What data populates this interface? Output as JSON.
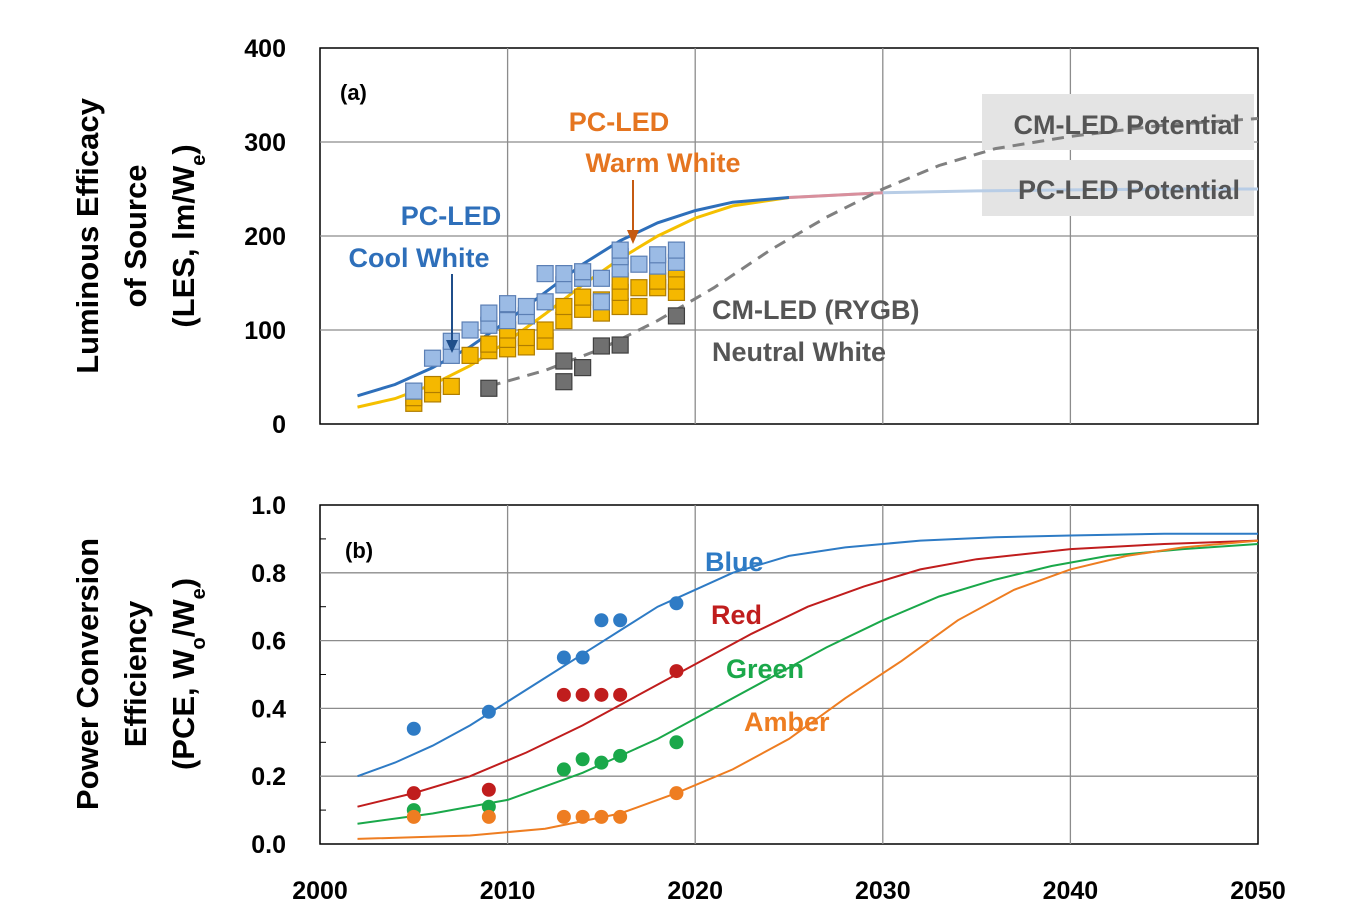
{
  "chart_data": [
    {
      "panel": "(a)",
      "type": "scatter",
      "ylabel_lines": [
        "Luminous Efficacy",
        "of Source",
        "(LES, lm/W",
        "e",
        ")"
      ],
      "xlim": [
        2000,
        2050
      ],
      "ylim": [
        0,
        400
      ],
      "yticks": [
        "0",
        "100",
        "200",
        "300",
        "400"
      ],
      "grid": true,
      "annotations": {
        "cool_white_1": "PC-LED",
        "cool_white_2": "Cool White",
        "warm_white_1": "PC-LED",
        "warm_white_2": "Warm White",
        "cm_led_1": "CM-LED (RYGB)",
        "cm_led_2": "Neutral White",
        "cm_potential": "CM-LED Potential",
        "pc_potential": "PC-LED Potential"
      },
      "colors": {
        "cool": "#2e6fba",
        "warm": "#f5c000",
        "cm": "#808080",
        "cool_marker": "#9bbbe5",
        "warm_marker": "#f5b800",
        "cm_marker": "#707070",
        "potential": "#b8cde6",
        "potential_join": "#d98f9c"
      },
      "series": [
        {
          "name": "PC-LED Cool White (data)",
          "points": [
            [
              2005,
              35
            ],
            [
              2006,
              70
            ],
            [
              2007,
              73
            ],
            [
              2007,
              88
            ],
            [
              2008,
              100
            ],
            [
              2009,
              105
            ],
            [
              2009,
              118
            ],
            [
              2010,
              110
            ],
            [
              2010,
              128
            ],
            [
              2011,
              115
            ],
            [
              2011,
              125
            ],
            [
              2012,
              130
            ],
            [
              2012,
              160
            ],
            [
              2013,
              148
            ],
            [
              2013,
              160
            ],
            [
              2014,
              155
            ],
            [
              2014,
              162
            ],
            [
              2015,
              130
            ],
            [
              2015,
              155
            ],
            [
              2016,
              165
            ],
            [
              2016,
              178
            ],
            [
              2016,
              185
            ],
            [
              2017,
              170
            ],
            [
              2018,
              168
            ],
            [
              2018,
              180
            ],
            [
              2019,
              172
            ],
            [
              2019,
              185
            ]
          ]
        },
        {
          "name": "PC-LED Warm White (data)",
          "points": [
            [
              2005,
              22
            ],
            [
              2005,
              28
            ],
            [
              2006,
              32
            ],
            [
              2006,
              42
            ],
            [
              2007,
              40
            ],
            [
              2008,
              73
            ],
            [
              2009,
              78
            ],
            [
              2009,
              85
            ],
            [
              2010,
              80
            ],
            [
              2010,
              90
            ],
            [
              2010,
              100
            ],
            [
              2011,
              82
            ],
            [
              2011,
              92
            ],
            [
              2012,
              88
            ],
            [
              2012,
              100
            ],
            [
              2013,
              110
            ],
            [
              2013,
              125
            ],
            [
              2014,
              122
            ],
            [
              2014,
              135
            ],
            [
              2015,
              118
            ],
            [
              2015,
              132
            ],
            [
              2016,
              125
            ],
            [
              2016,
              140
            ],
            [
              2016,
              152
            ],
            [
              2017,
              125
            ],
            [
              2017,
              145
            ],
            [
              2018,
              145
            ],
            [
              2018,
              152
            ],
            [
              2019,
              140
            ],
            [
              2019,
              152
            ],
            [
              2019,
              165
            ]
          ]
        },
        {
          "name": "CM-LED (RYGB) Neutral White (data)",
          "points": [
            [
              2005,
              35
            ],
            [
              2009,
              38
            ],
            [
              2013,
              45
            ],
            [
              2013,
              67
            ],
            [
              2014,
              60
            ],
            [
              2015,
              83
            ],
            [
              2016,
              84
            ],
            [
              2019,
              115
            ]
          ]
        },
        {
          "name": "PC-LED Cool White (fit)",
          "x": [
            2002,
            2004,
            2006,
            2008,
            2010,
            2012,
            2014,
            2016,
            2018,
            2020,
            2022,
            2025
          ],
          "y": [
            30,
            42,
            60,
            82,
            110,
            140,
            170,
            195,
            214,
            227,
            236,
            241
          ]
        },
        {
          "name": "PC-LED Warm White (fit)",
          "x": [
            2002,
            2004,
            2006,
            2008,
            2010,
            2012,
            2014,
            2016,
            2018,
            2020,
            2022,
            2025
          ],
          "y": [
            18,
            27,
            42,
            62,
            88,
            117,
            148,
            176,
            200,
            219,
            232,
            241
          ]
        },
        {
          "name": "CM-LED (fit)",
          "x": [
            2009,
            2012,
            2015,
            2018,
            2021,
            2024,
            2027,
            2030,
            2033,
            2036,
            2040,
            2045,
            2050
          ],
          "y": [
            40,
            57,
            80,
            110,
            145,
            185,
            220,
            250,
            275,
            293,
            306,
            318,
            325
          ]
        },
        {
          "name": "PC-LED Potential",
          "x": [
            2025,
            2030,
            2035,
            2040,
            2045,
            2050
          ],
          "y": [
            241,
            246,
            248,
            249,
            250,
            250
          ]
        }
      ]
    },
    {
      "panel": "(b)",
      "type": "scatter",
      "ylabel_lines": [
        "Power Conversion",
        "Efficiency",
        "(PCE, W",
        "o",
        "/W",
        "e",
        ")"
      ],
      "xlabel": "",
      "xlim": [
        2000,
        2050
      ],
      "ylim": [
        0,
        1.0
      ],
      "xticks": [
        "2000",
        "2010",
        "2020",
        "2030",
        "2040",
        "2050"
      ],
      "yticks": [
        "0.0",
        "0.2",
        "0.4",
        "0.6",
        "0.8",
        "1.0"
      ],
      "grid": true,
      "annotations": {
        "blue": "Blue",
        "red": "Red",
        "green": "Green",
        "amber": "Amber"
      },
      "series": [
        {
          "name": "Blue",
          "color": "#2e7bc5",
          "points": [
            [
              2005,
              0.34
            ],
            [
              2009,
              0.39
            ],
            [
              2013,
              0.55
            ],
            [
              2014,
              0.55
            ],
            [
              2015,
              0.66
            ],
            [
              2016,
              0.66
            ],
            [
              2019,
              0.71
            ]
          ]
        },
        {
          "name": "Red",
          "color": "#c01d1d",
          "points": [
            [
              2005,
              0.15
            ],
            [
              2009,
              0.16
            ],
            [
              2013,
              0.44
            ],
            [
              2014,
              0.44
            ],
            [
              2015,
              0.44
            ],
            [
              2016,
              0.44
            ],
            [
              2019,
              0.51
            ]
          ]
        },
        {
          "name": "Green",
          "color": "#1aa84a",
          "points": [
            [
              2005,
              0.1
            ],
            [
              2009,
              0.11
            ],
            [
              2013,
              0.22
            ],
            [
              2014,
              0.25
            ],
            [
              2015,
              0.24
            ],
            [
              2016,
              0.26
            ],
            [
              2019,
              0.3
            ]
          ]
        },
        {
          "name": "Amber",
          "color": "#ee7d21",
          "points": [
            [
              2005,
              0.08
            ],
            [
              2009,
              0.08
            ],
            [
              2013,
              0.08
            ],
            [
              2014,
              0.08
            ],
            [
              2015,
              0.08
            ],
            [
              2016,
              0.08
            ],
            [
              2019,
              0.15
            ]
          ]
        },
        {
          "name": "Blue (fit)",
          "color": "#2e7bc5",
          "x": [
            2002,
            2004,
            2006,
            2008,
            2010,
            2012,
            2014,
            2016,
            2018,
            2020,
            2022,
            2025,
            2028,
            2032,
            2036,
            2040,
            2045,
            2050
          ],
          "y": [
            0.2,
            0.24,
            0.29,
            0.35,
            0.42,
            0.49,
            0.56,
            0.63,
            0.7,
            0.75,
            0.8,
            0.85,
            0.875,
            0.895,
            0.905,
            0.91,
            0.915,
            0.915
          ]
        },
        {
          "name": "Red (fit)",
          "color": "#c01d1d",
          "x": [
            2002,
            2005,
            2008,
            2011,
            2014,
            2017,
            2020,
            2023,
            2026,
            2029,
            2032,
            2035,
            2040,
            2045,
            2050
          ],
          "y": [
            0.11,
            0.15,
            0.2,
            0.27,
            0.35,
            0.44,
            0.53,
            0.62,
            0.7,
            0.76,
            0.81,
            0.84,
            0.87,
            0.885,
            0.895
          ]
        },
        {
          "name": "Green (fit)",
          "color": "#1aa84a",
          "x": [
            2002,
            2006,
            2010,
            2014,
            2018,
            2021,
            2024,
            2027,
            2030,
            2033,
            2036,
            2039,
            2042,
            2046,
            2050
          ],
          "y": [
            0.06,
            0.09,
            0.13,
            0.21,
            0.31,
            0.4,
            0.49,
            0.58,
            0.66,
            0.73,
            0.78,
            0.82,
            0.85,
            0.87,
            0.885
          ]
        },
        {
          "name": "Amber (fit)",
          "color": "#ee7d21",
          "x": [
            2002,
            2008,
            2012,
            2016,
            2019,
            2022,
            2025,
            2028,
            2031,
            2034,
            2037,
            2040,
            2043,
            2046,
            2050
          ],
          "y": [
            0.015,
            0.025,
            0.045,
            0.09,
            0.15,
            0.22,
            0.31,
            0.43,
            0.54,
            0.66,
            0.75,
            0.81,
            0.85,
            0.875,
            0.895
          ]
        }
      ]
    }
  ]
}
